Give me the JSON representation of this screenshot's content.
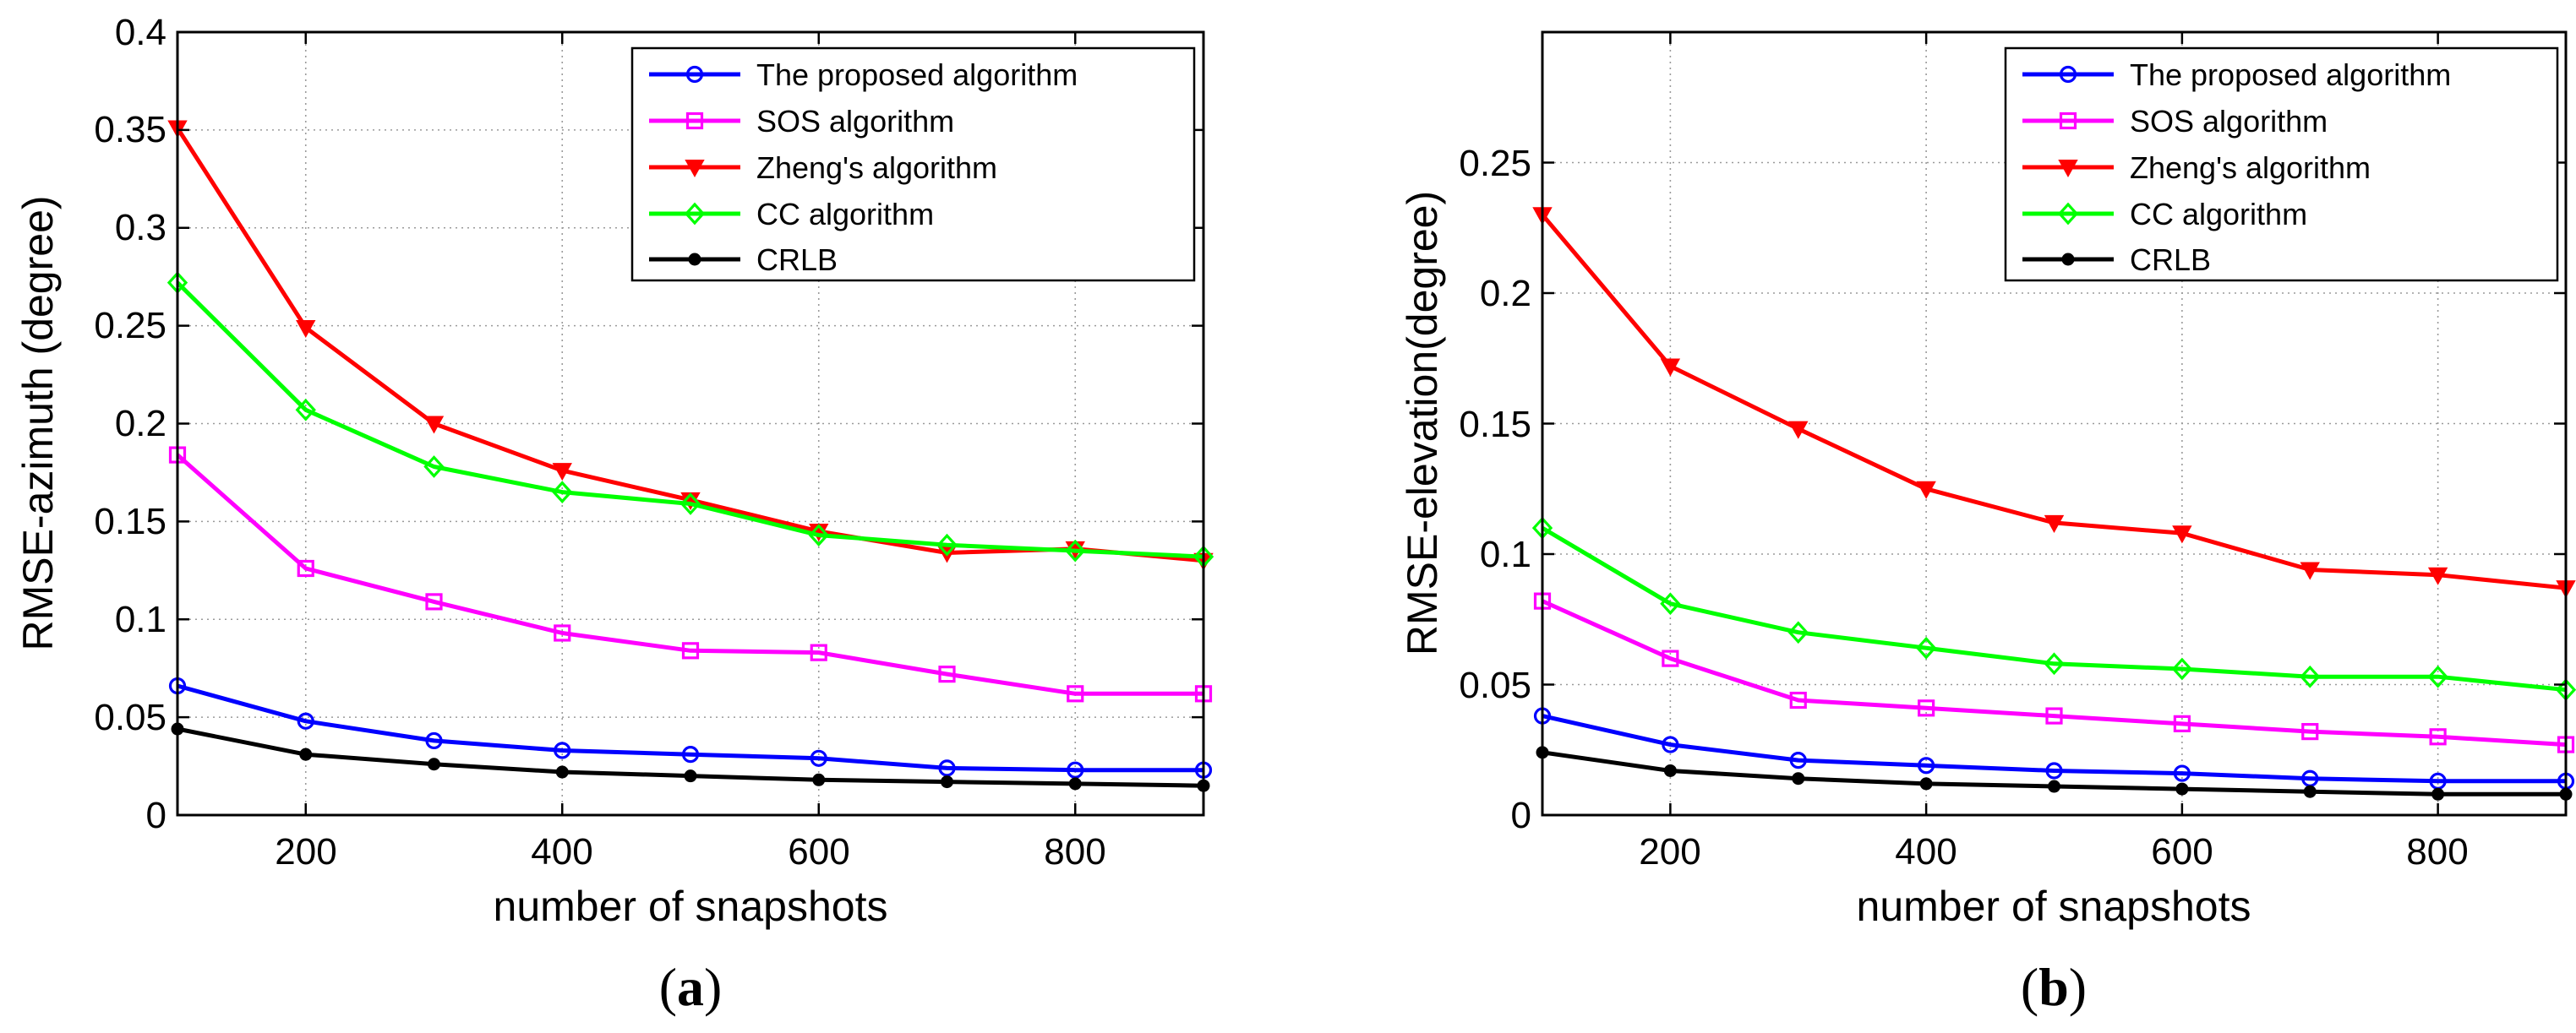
{
  "figure": {
    "panels": [
      {
        "label_open": "(",
        "label_letter": "a",
        "label_close": ")"
      },
      {
        "label_open": "(",
        "label_letter": "b",
        "label_close": ")"
      }
    ]
  },
  "chart_data": [
    {
      "type": "line",
      "title": "",
      "xlabel": "number of snapshots",
      "ylabel": "RMSE-azimuth (degree)",
      "xlim": [
        100,
        900
      ],
      "ylim": [
        0,
        0.4
      ],
      "xticks": [
        200,
        400,
        600,
        800
      ],
      "xtick_labels": [
        "200",
        "400",
        "600",
        "800"
      ],
      "yticks": [
        0,
        0.05,
        0.1,
        0.15,
        0.2,
        0.25,
        0.3,
        0.35,
        0.4
      ],
      "ytick_labels": [
        "0",
        "0.05",
        "0.1",
        "0.15",
        "0.2",
        "0.25",
        "0.3",
        "0.35",
        "0.4"
      ],
      "grid": true,
      "legend_position": "top-right",
      "x": [
        100,
        200,
        300,
        400,
        500,
        600,
        700,
        800,
        900
      ],
      "series": [
        {
          "name": "The proposed algorithm",
          "color": "#0000ff",
          "marker": "circle",
          "values": [
            0.066,
            0.048,
            0.038,
            0.033,
            0.031,
            0.029,
            0.024,
            0.023,
            0.023
          ]
        },
        {
          "name": "SOS algorithm",
          "color": "#ff00ff",
          "marker": "square",
          "values": [
            0.184,
            0.126,
            0.109,
            0.093,
            0.084,
            0.083,
            0.072,
            0.062,
            0.062
          ]
        },
        {
          "name": "Zheng's algorithm",
          "color": "#ff0000",
          "marker": "triangle-down",
          "values": [
            0.351,
            0.249,
            0.2,
            0.176,
            0.161,
            0.145,
            0.134,
            0.136,
            0.13
          ]
        },
        {
          "name": "CC algorithm",
          "color": "#00ff00",
          "marker": "diamond",
          "values": [
            0.272,
            0.207,
            0.178,
            0.165,
            0.159,
            0.143,
            0.138,
            0.135,
            0.132
          ]
        },
        {
          "name": "CRLB",
          "color": "#000000",
          "marker": "dot",
          "values": [
            0.044,
            0.031,
            0.026,
            0.022,
            0.02,
            0.018,
            0.017,
            0.016,
            0.015
          ]
        }
      ]
    },
    {
      "type": "line",
      "title": "",
      "xlabel": "number of snapshots",
      "ylabel": "RMSE-elevation(degree)",
      "xlim": [
        100,
        900
      ],
      "ylim": [
        0,
        0.3
      ],
      "xticks": [
        200,
        400,
        600,
        800
      ],
      "xtick_labels": [
        "200",
        "400",
        "600",
        "800"
      ],
      "yticks": [
        0,
        0.05,
        0.1,
        0.15,
        0.2,
        0.25
      ],
      "ytick_labels": [
        "0",
        "0.05",
        "0.1",
        "0.15",
        "0.2",
        "0.25"
      ],
      "grid": true,
      "legend_position": "top-right",
      "x": [
        100,
        200,
        300,
        400,
        500,
        600,
        700,
        800,
        900
      ],
      "series": [
        {
          "name": "The proposed algorithm",
          "color": "#0000ff",
          "marker": "circle",
          "values": [
            0.038,
            0.027,
            0.021,
            0.019,
            0.017,
            0.016,
            0.014,
            0.013,
            0.013
          ]
        },
        {
          "name": "SOS algorithm",
          "color": "#ff00ff",
          "marker": "square",
          "values": [
            0.082,
            0.06,
            0.044,
            0.041,
            0.038,
            0.035,
            0.032,
            0.03,
            0.027
          ]
        },
        {
          "name": "Zheng's algorithm",
          "color": "#ff0000",
          "marker": "triangle-down",
          "values": [
            0.23,
            0.172,
            0.148,
            0.125,
            0.112,
            0.108,
            0.094,
            0.092,
            0.087
          ]
        },
        {
          "name": "CC algorithm",
          "color": "#00ff00",
          "marker": "diamond",
          "values": [
            0.11,
            0.081,
            0.07,
            0.064,
            0.058,
            0.056,
            0.053,
            0.053,
            0.048
          ]
        },
        {
          "name": "CRLB",
          "color": "#000000",
          "marker": "dot",
          "values": [
            0.024,
            0.017,
            0.014,
            0.012,
            0.011,
            0.01,
            0.009,
            0.008,
            0.008
          ]
        }
      ]
    }
  ]
}
